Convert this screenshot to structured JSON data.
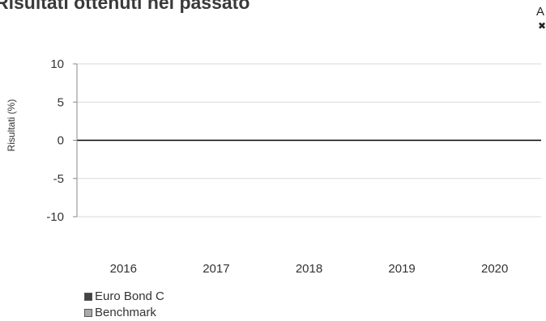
{
  "title": "Risultati ottenuti nel passato",
  "corner_glyphs": {
    "top": "A",
    "bottom": "✖"
  },
  "legend": [
    {
      "label": "Euro Bond C",
      "color": "#444444"
    },
    {
      "label": "Benchmark",
      "color": "#aaaaaa"
    }
  ],
  "chart_data": {
    "type": "bar",
    "categories": [
      "2016",
      "2017",
      "2018",
      "2019",
      "2020"
    ],
    "series": [
      {
        "name": "Euro Bond C",
        "values": [
          null,
          null,
          null,
          null,
          null
        ]
      },
      {
        "name": "Benchmark",
        "values": [
          null,
          null,
          null,
          null,
          null
        ]
      }
    ],
    "ylabel": "Risultati (%)",
    "ylim": [
      -10,
      10
    ],
    "yticks": [
      10,
      5,
      0,
      -5,
      -10
    ],
    "grid": true,
    "legend_position": "bottom-left"
  }
}
